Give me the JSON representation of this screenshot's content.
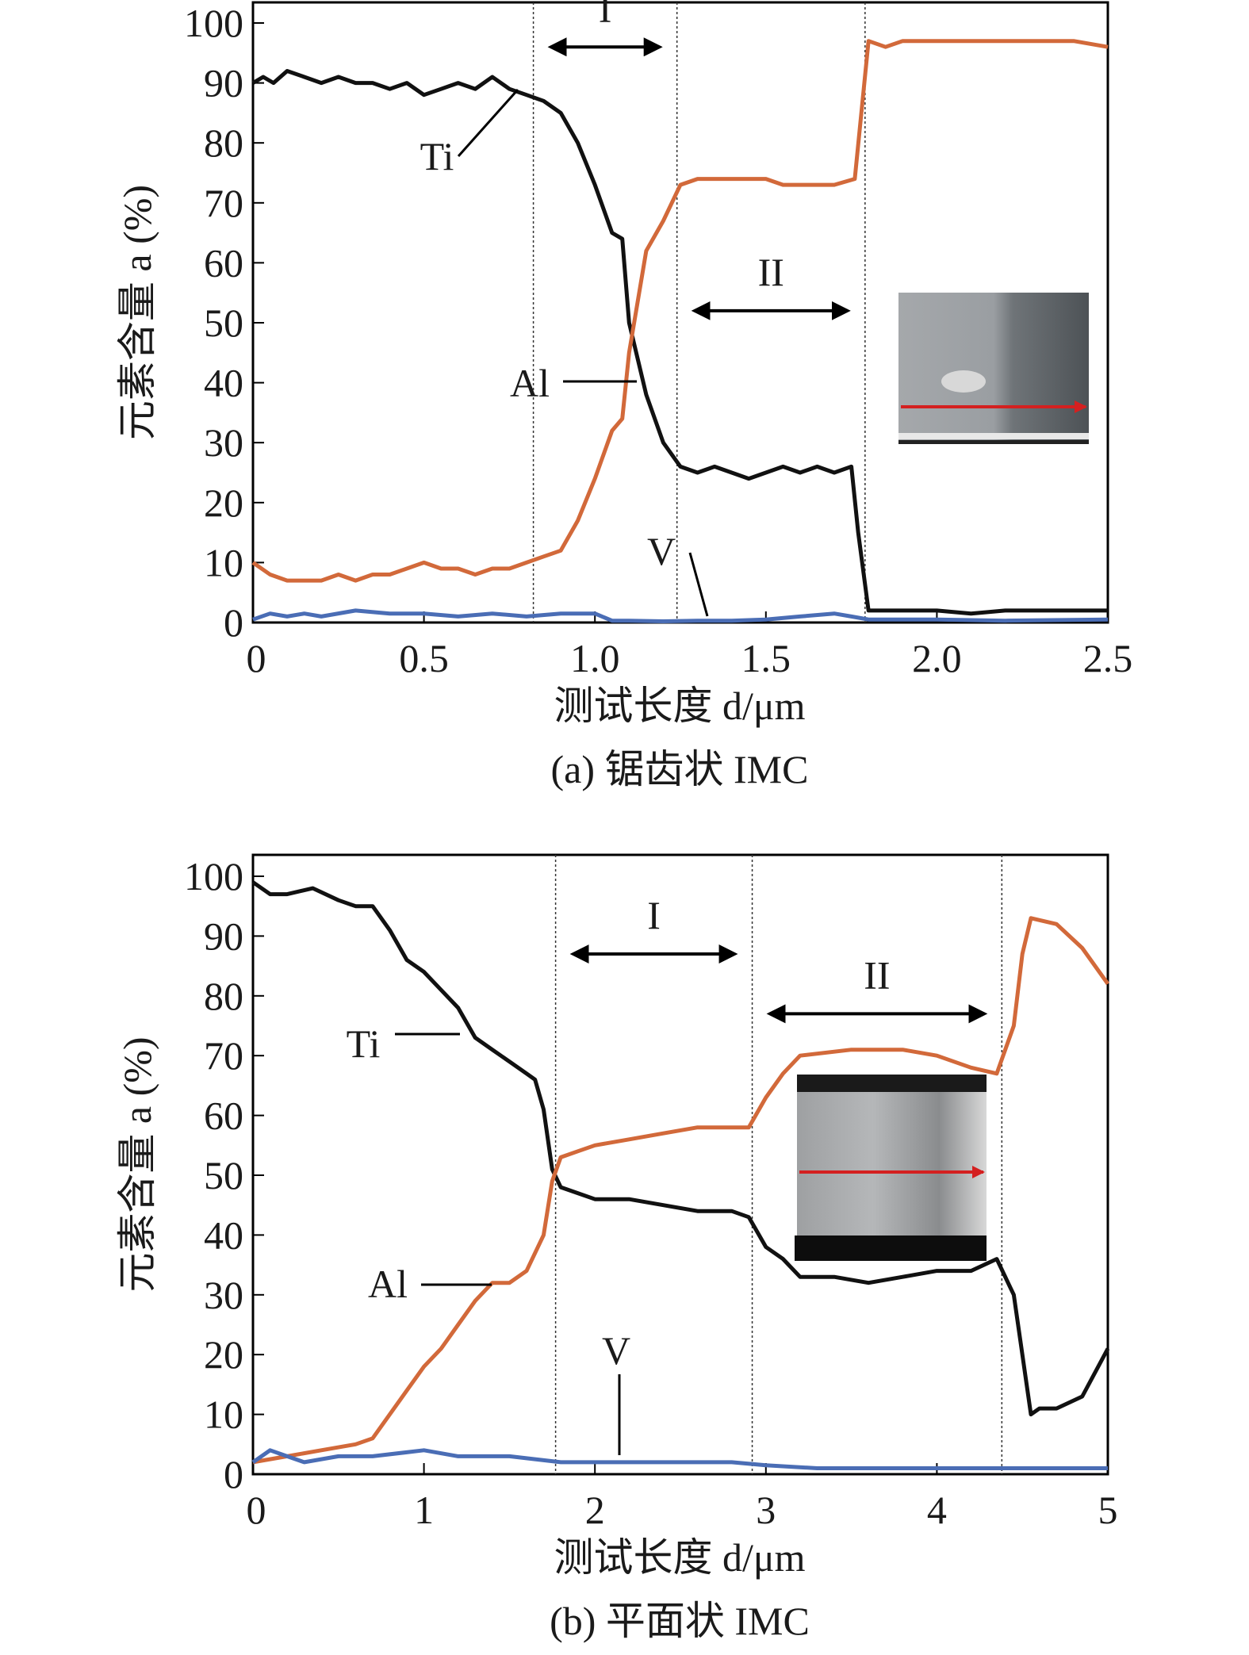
{
  "colors": {
    "Ti": "#111111",
    "Al": "#d2693a",
    "V": "#4a6db5"
  },
  "chart_data": [
    {
      "type": "line",
      "caption": "(a) 锯齿状 IMC",
      "xlabel": "测试长度 d/μm",
      "ylabel": "元素含量 a (%)",
      "xlim": [
        0,
        2.5
      ],
      "ylim": [
        0,
        100
      ],
      "xticks": [
        "0",
        "0.5",
        "1.0",
        "1.5",
        "2.0",
        "2.5"
      ],
      "xtick_values": [
        0,
        0.5,
        1.0,
        1.5,
        2.0,
        2.5
      ],
      "yticks": [
        "0",
        "10",
        "20",
        "30",
        "40",
        "50",
        "60",
        "70",
        "80",
        "90",
        "100"
      ],
      "boundaries": [
        0.82,
        1.24,
        1.79
      ],
      "regions": [
        {
          "label": "I",
          "from": 0.82,
          "to": 1.24,
          "y": 96
        },
        {
          "label": "II",
          "from": 1.24,
          "to": 1.79,
          "y": 52
        }
      ],
      "series": [
        {
          "name": "Ti",
          "x": [
            0,
            0.03,
            0.06,
            0.1,
            0.15,
            0.2,
            0.25,
            0.3,
            0.35,
            0.4,
            0.45,
            0.5,
            0.55,
            0.6,
            0.65,
            0.7,
            0.75,
            0.8,
            0.85,
            0.9,
            0.95,
            1.0,
            1.05,
            1.08,
            1.1,
            1.15,
            1.2,
            1.25,
            1.3,
            1.35,
            1.4,
            1.45,
            1.5,
            1.55,
            1.6,
            1.65,
            1.7,
            1.75,
            1.77,
            1.8,
            1.9,
            2.0,
            2.1,
            2.2,
            2.3,
            2.4,
            2.5
          ],
          "y": [
            90,
            91,
            90,
            92,
            91,
            90,
            91,
            90,
            90,
            89,
            90,
            88,
            89,
            90,
            89,
            91,
            89,
            88,
            87,
            85,
            80,
            73,
            65,
            64,
            50,
            38,
            30,
            26,
            25,
            26,
            25,
            24,
            25,
            26,
            25,
            26,
            25,
            26,
            15,
            2,
            2,
            2,
            1.5,
            2,
            2,
            2,
            2
          ]
        },
        {
          "name": "Al",
          "x": [
            0,
            0.05,
            0.1,
            0.15,
            0.2,
            0.25,
            0.3,
            0.35,
            0.4,
            0.45,
            0.5,
            0.55,
            0.6,
            0.65,
            0.7,
            0.75,
            0.8,
            0.85,
            0.9,
            0.95,
            1.0,
            1.05,
            1.08,
            1.1,
            1.15,
            1.2,
            1.25,
            1.3,
            1.35,
            1.4,
            1.45,
            1.5,
            1.55,
            1.6,
            1.65,
            1.7,
            1.76,
            1.8,
            1.85,
            1.9,
            2.0,
            2.1,
            2.2,
            2.3,
            2.4,
            2.5
          ],
          "y": [
            10,
            8,
            7,
            7,
            7,
            8,
            7,
            8,
            8,
            9,
            10,
            9,
            9,
            8,
            9,
            9,
            10,
            11,
            12,
            17,
            24,
            32,
            34,
            45,
            62,
            67,
            73,
            74,
            74,
            74,
            74,
            74,
            73,
            73,
            73,
            73,
            74,
            97,
            96,
            97,
            97,
            97,
            97,
            97,
            97,
            96
          ]
        },
        {
          "name": "V",
          "x": [
            0,
            0.05,
            0.1,
            0.15,
            0.2,
            0.3,
            0.4,
            0.5,
            0.6,
            0.7,
            0.8,
            0.9,
            1.0,
            1.05,
            1.1,
            1.2,
            1.3,
            1.4,
            1.5,
            1.6,
            1.7,
            1.75,
            1.8,
            2.0,
            2.2,
            2.5
          ],
          "y": [
            0.5,
            1.5,
            1,
            1.5,
            1,
            2,
            1.5,
            1.5,
            1,
            1.5,
            1,
            1.5,
            1.5,
            0.3,
            0.3,
            0.2,
            0.3,
            0.3,
            0.5,
            1,
            1.5,
            1,
            0.5,
            0.5,
            0.3,
            0.5
          ]
        }
      ],
      "annotations": [
        {
          "text": "Ti",
          "series": "Ti"
        },
        {
          "text": "Al",
          "series": "Al"
        },
        {
          "text": "V",
          "series": "V"
        }
      ]
    },
    {
      "type": "line",
      "caption": "(b) 平面状 IMC",
      "xlabel": "测试长度 d/μm",
      "ylabel": "元素含量 a (%)",
      "xlim": [
        0,
        5
      ],
      "ylim": [
        0,
        100
      ],
      "xticks": [
        "0",
        "1",
        "2",
        "3",
        "4",
        "5"
      ],
      "xtick_values": [
        0,
        1,
        2,
        3,
        4,
        5
      ],
      "yticks": [
        "0",
        "10",
        "20",
        "30",
        "40",
        "50",
        "60",
        "70",
        "80",
        "90",
        "100"
      ],
      "boundaries": [
        1.77,
        2.92,
        4.38
      ],
      "regions": [
        {
          "label": "I",
          "from": 1.77,
          "to": 2.92,
          "y": 87
        },
        {
          "label": "II",
          "from": 2.92,
          "to": 4.38,
          "y": 77
        }
      ],
      "series": [
        {
          "name": "Ti",
          "x": [
            0,
            0.1,
            0.2,
            0.35,
            0.5,
            0.6,
            0.7,
            0.8,
            0.9,
            1.0,
            1.1,
            1.2,
            1.3,
            1.4,
            1.5,
            1.6,
            1.65,
            1.7,
            1.75,
            1.8,
            1.9,
            2.0,
            2.2,
            2.4,
            2.6,
            2.8,
            2.9,
            3.0,
            3.1,
            3.2,
            3.4,
            3.6,
            3.8,
            4.0,
            4.2,
            4.35,
            4.45,
            4.5,
            4.55,
            4.6,
            4.7,
            4.85,
            5.0
          ],
          "y": [
            99,
            97,
            97,
            98,
            96,
            95,
            95,
            91,
            86,
            84,
            81,
            78,
            73,
            71,
            69,
            67,
            66,
            61,
            51,
            48,
            47,
            46,
            46,
            45,
            44,
            44,
            43,
            38,
            36,
            33,
            33,
            32,
            33,
            34,
            34,
            36,
            30,
            20,
            10,
            11,
            11,
            13,
            21
          ]
        },
        {
          "name": "Al",
          "x": [
            0,
            0.2,
            0.4,
            0.6,
            0.7,
            0.8,
            0.9,
            1.0,
            1.1,
            1.2,
            1.3,
            1.4,
            1.5,
            1.6,
            1.7,
            1.75,
            1.8,
            1.9,
            2.0,
            2.2,
            2.4,
            2.6,
            2.9,
            3.0,
            3.1,
            3.2,
            3.5,
            3.8,
            4.0,
            4.2,
            4.35,
            4.45,
            4.5,
            4.55,
            4.7,
            4.85,
            5.0
          ],
          "y": [
            2,
            3,
            4,
            5,
            6,
            10,
            14,
            18,
            21,
            25,
            29,
            32,
            32,
            34,
            40,
            49,
            53,
            54,
            55,
            56,
            57,
            58,
            58,
            63,
            67,
            70,
            71,
            71,
            70,
            68,
            67,
            75,
            87,
            93,
            92,
            88,
            82
          ]
        },
        {
          "name": "V",
          "x": [
            0,
            0.1,
            0.2,
            0.3,
            0.5,
            0.7,
            1.0,
            1.2,
            1.5,
            1.8,
            2.0,
            2.2,
            2.5,
            2.8,
            3.0,
            3.3,
            3.6,
            4.0,
            4.3,
            4.6,
            5.0
          ],
          "y": [
            2,
            4,
            3,
            2,
            3,
            3,
            4,
            3,
            3,
            2,
            2,
            2,
            2,
            2,
            1.5,
            1,
            1,
            1,
            1,
            1,
            1
          ]
        }
      ],
      "annotations": [
        {
          "text": "Ti",
          "series": "Ti"
        },
        {
          "text": "Al",
          "series": "Al"
        },
        {
          "text": "V",
          "series": "V"
        }
      ]
    }
  ]
}
